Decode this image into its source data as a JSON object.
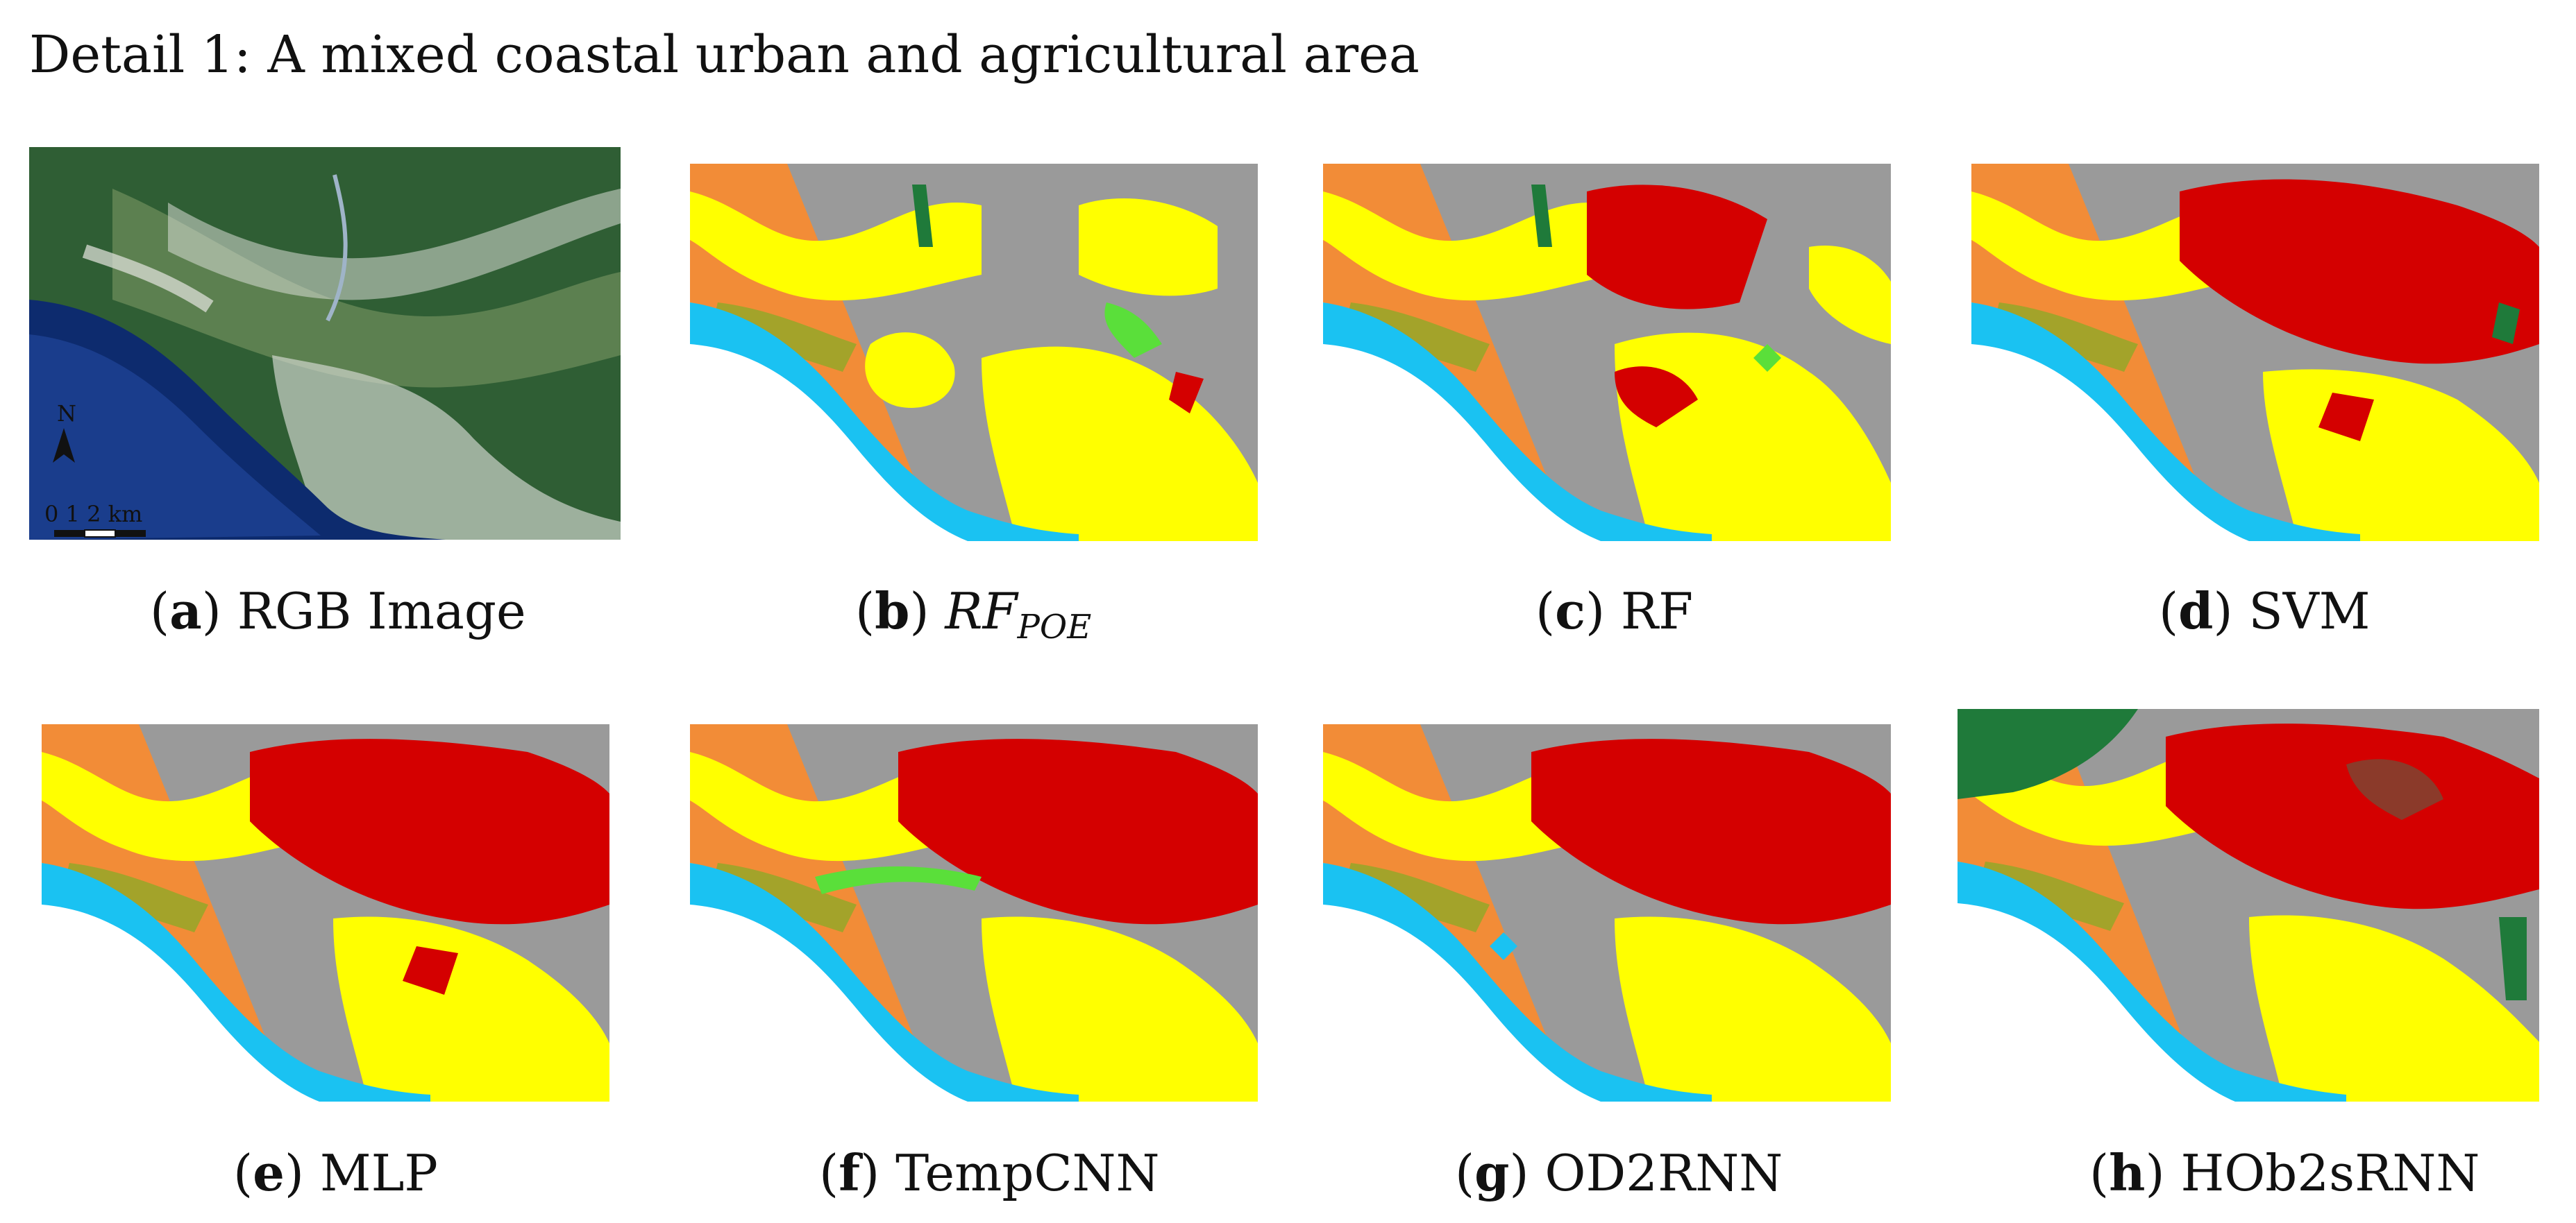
{
  "title": "Detail 1: A mixed coastal urban and agricultural area",
  "colors": {
    "water": "#1ac2f2",
    "orange": "#f28c37",
    "yellow": "#ffff00",
    "red": "#d40000",
    "gray": "#9a9a9a",
    "olive": "#a3a32a",
    "dark_green": "#1f7a3a",
    "light_green": "#5adf3a",
    "brown": "#8b3a2a"
  },
  "rgb_image": {
    "north_label": "N",
    "scale_label": "0   1   2 km"
  },
  "panels": [
    {
      "letter": "a",
      "label": "RGB Image"
    },
    {
      "letter": "b",
      "label": "RF",
      "label_sub": "POE"
    },
    {
      "letter": "c",
      "label": "RF"
    },
    {
      "letter": "d",
      "label": "SVM"
    },
    {
      "letter": "e",
      "label": "MLP"
    },
    {
      "letter": "f",
      "label": "TempCNN"
    },
    {
      "letter": "g",
      "label": "OD2RNN"
    },
    {
      "letter": "h",
      "label": "HOb2sRNN"
    }
  ]
}
